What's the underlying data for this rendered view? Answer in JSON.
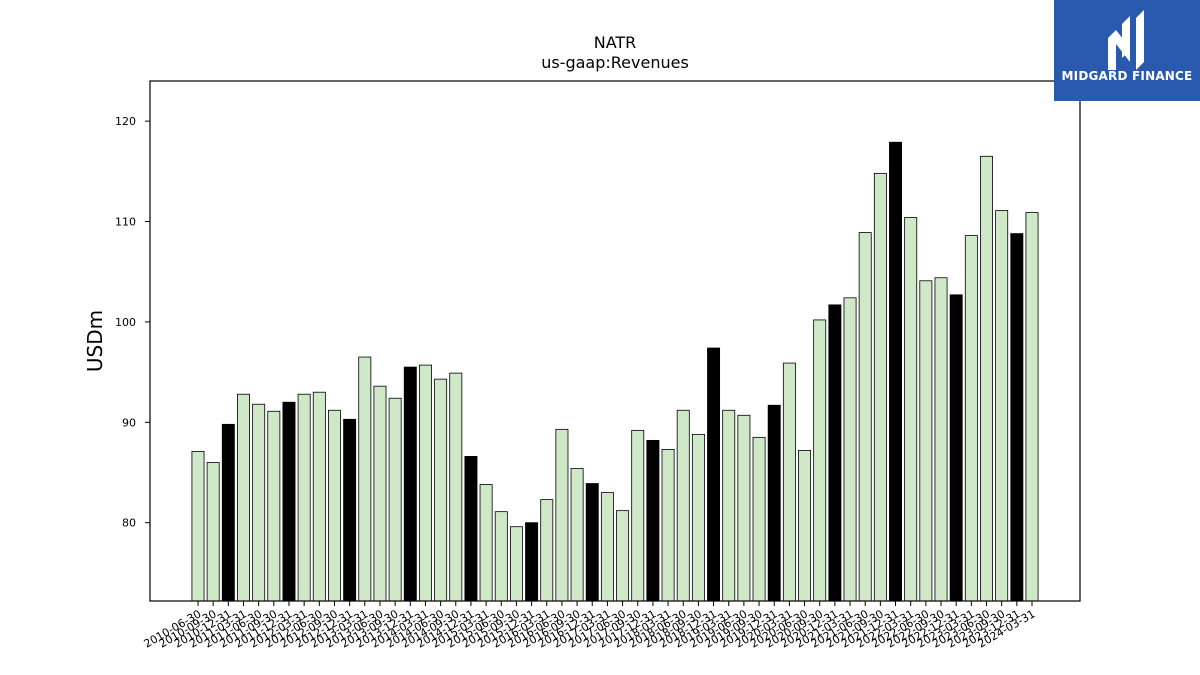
{
  "chart_data": {
    "type": "bar",
    "title": "NATR",
    "subtitle": "us-gaap:Revenues",
    "ylabel": "USDm",
    "xlabel": "",
    "ylim": [
      72.2,
      124
    ],
    "yticks": [
      80,
      90,
      100,
      110,
      120
    ],
    "grid": false,
    "colors": {
      "normal": "#cfe9c8",
      "highlight": "#000000",
      "edge": "#000000"
    },
    "categories": [
      "2010-06-30",
      "2010-09-30",
      "2010-12-31",
      "2011-03-31",
      "2011-06-30",
      "2011-09-30",
      "2011-12-31",
      "2012-03-31",
      "2012-06-30",
      "2012-09-30",
      "2012-12-31",
      "2013-03-31",
      "2013-06-30",
      "2013-09-30",
      "2013-12-31",
      "2014-03-31",
      "2014-06-30",
      "2014-09-30",
      "2014-12-31",
      "2015-03-31",
      "2015-06-30",
      "2015-09-30",
      "2015-12-31",
      "2016-03-31",
      "2016-06-30",
      "2016-09-30",
      "2016-12-31",
      "2017-03-31",
      "2017-06-30",
      "2017-09-30",
      "2017-12-31",
      "2018-03-31",
      "2018-06-30",
      "2018-09-30",
      "2018-12-31",
      "2019-03-31",
      "2019-06-30",
      "2019-09-30",
      "2019-12-31",
      "2020-03-31",
      "2020-06-30",
      "2020-09-30",
      "2020-12-31",
      "2021-03-31",
      "2021-06-30",
      "2021-09-30",
      "2021-12-31",
      "2022-03-31",
      "2022-06-30",
      "2022-09-30",
      "2022-12-31",
      "2023-03-31",
      "2023-06-30",
      "2023-09-30",
      "2023-12-31",
      "2024-03-31"
    ],
    "values": [
      87.1,
      86.0,
      89.8,
      92.8,
      91.8,
      91.1,
      92.0,
      92.8,
      93.0,
      91.2,
      90.3,
      96.5,
      93.6,
      92.4,
      95.5,
      95.7,
      94.3,
      94.9,
      86.6,
      83.8,
      81.1,
      79.6,
      80.0,
      82.3,
      89.3,
      85.4,
      83.9,
      83.0,
      81.2,
      89.2,
      88.2,
      87.3,
      91.2,
      88.8,
      97.4,
      91.2,
      90.7,
      88.5,
      91.7,
      95.9,
      87.2,
      100.2,
      101.7,
      102.4,
      108.9,
      114.8,
      117.9,
      110.4,
      104.1,
      104.4,
      102.7,
      108.6,
      116.5,
      111.1,
      108.8,
      110.9
    ],
    "highlight": [
      false,
      false,
      true,
      false,
      false,
      false,
      true,
      false,
      false,
      false,
      true,
      false,
      false,
      false,
      true,
      false,
      false,
      false,
      true,
      false,
      false,
      false,
      true,
      false,
      false,
      false,
      true,
      false,
      false,
      false,
      true,
      false,
      false,
      false,
      true,
      false,
      false,
      false,
      true,
      false,
      false,
      false,
      true,
      false,
      false,
      false,
      true,
      false,
      false,
      false,
      true,
      false,
      false,
      false,
      true,
      false
    ]
  },
  "logo": {
    "text": "MIDGARD FINANCE",
    "color": "#2a5aad"
  }
}
